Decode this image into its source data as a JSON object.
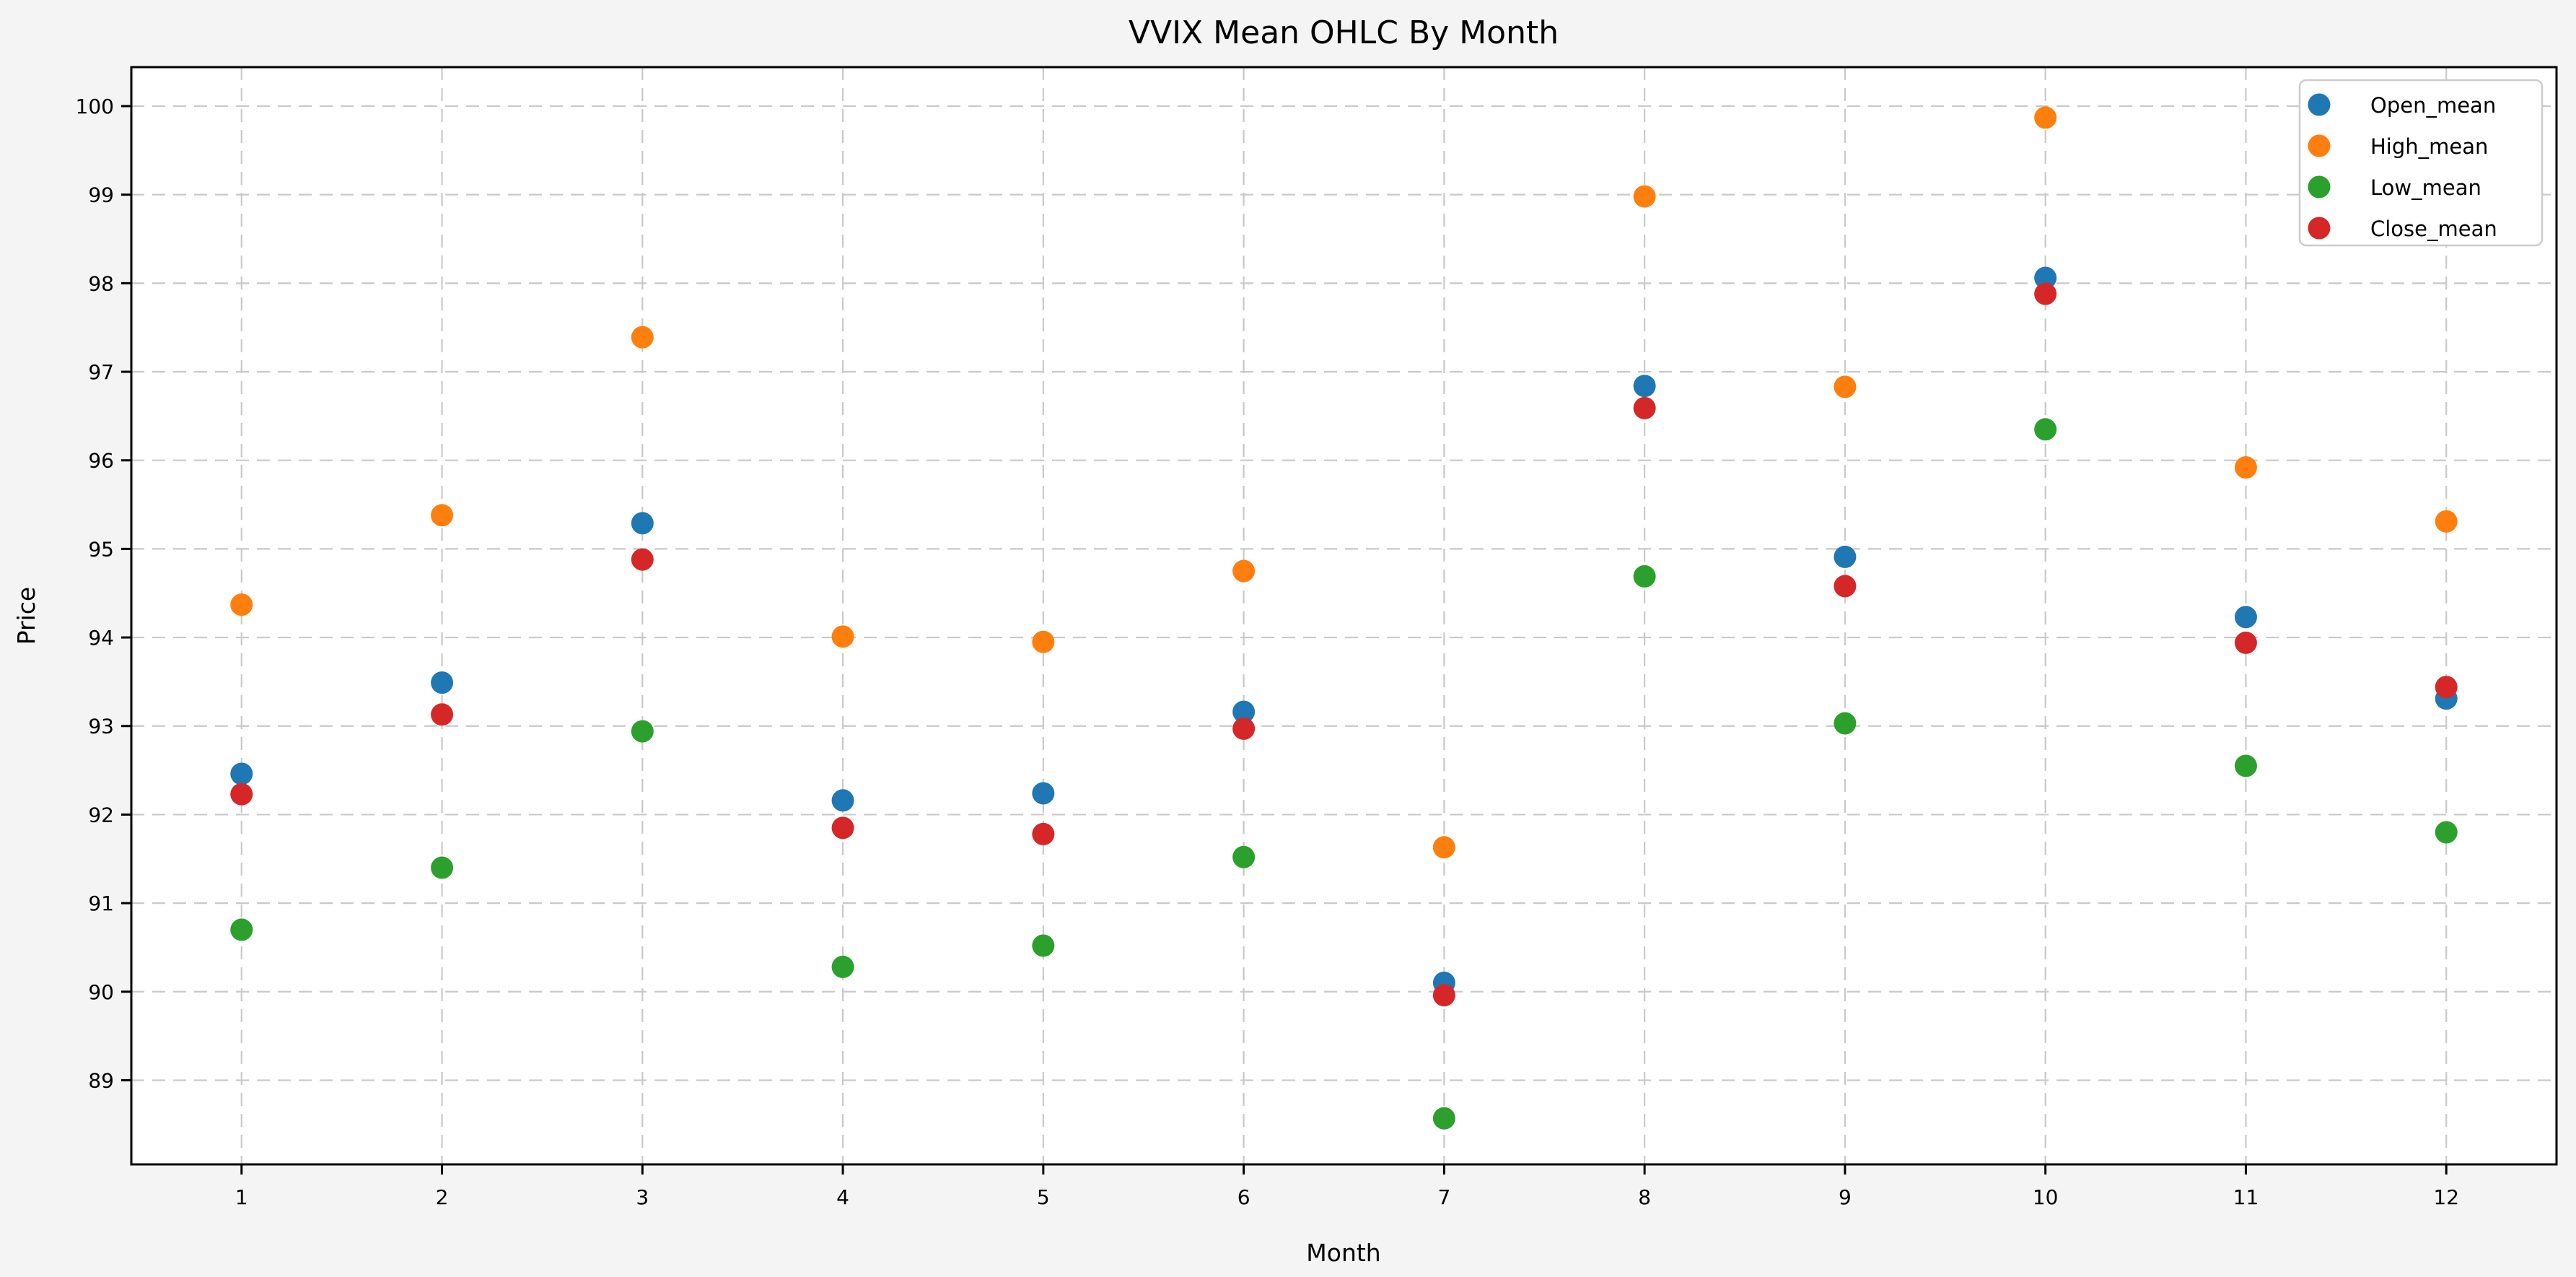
{
  "figure": {
    "background_color": "#f4f4f4",
    "plot_background_color": "#ffffff",
    "grid_color": "#c9c9c9",
    "spine_color": "#000000"
  },
  "chart_data": {
    "type": "scatter",
    "title": "VVIX Mean OHLC By Month",
    "xlabel": "Month",
    "ylabel": "Price",
    "grid": true,
    "legend_position": "upper right",
    "xlim": [
      0.45,
      12.55
    ],
    "ylim": [
      88.05,
      100.44
    ],
    "xticks": [
      1,
      2,
      3,
      4,
      5,
      6,
      7,
      8,
      9,
      10,
      11,
      12
    ],
    "yticks": [
      89,
      90,
      91,
      92,
      93,
      94,
      95,
      96,
      97,
      98,
      99,
      100
    ],
    "categories": [
      1,
      2,
      3,
      4,
      5,
      6,
      7,
      8,
      9,
      10,
      11,
      12
    ],
    "series": [
      {
        "name": "Open_mean",
        "color": "#1f77b4",
        "values": [
          92.46,
          93.49,
          95.29,
          92.16,
          92.24,
          93.16,
          90.1,
          96.84,
          94.91,
          98.06,
          94.23,
          93.31
        ]
      },
      {
        "name": "High_mean",
        "color": "#ff7f0e",
        "values": [
          94.37,
          95.38,
          97.39,
          94.01,
          93.95,
          94.75,
          91.63,
          98.98,
          96.83,
          99.87,
          95.92,
          95.31
        ]
      },
      {
        "name": "Low_mean",
        "color": "#2ca02c",
        "values": [
          90.7,
          91.4,
          92.94,
          90.28,
          90.52,
          91.52,
          88.57,
          94.69,
          93.03,
          96.35,
          92.55,
          91.8
        ]
      },
      {
        "name": "Close_mean",
        "color": "#d62728",
        "values": [
          92.23,
          93.13,
          94.88,
          91.85,
          91.78,
          92.97,
          89.96,
          96.59,
          94.58,
          97.88,
          93.94,
          93.44
        ]
      }
    ]
  }
}
